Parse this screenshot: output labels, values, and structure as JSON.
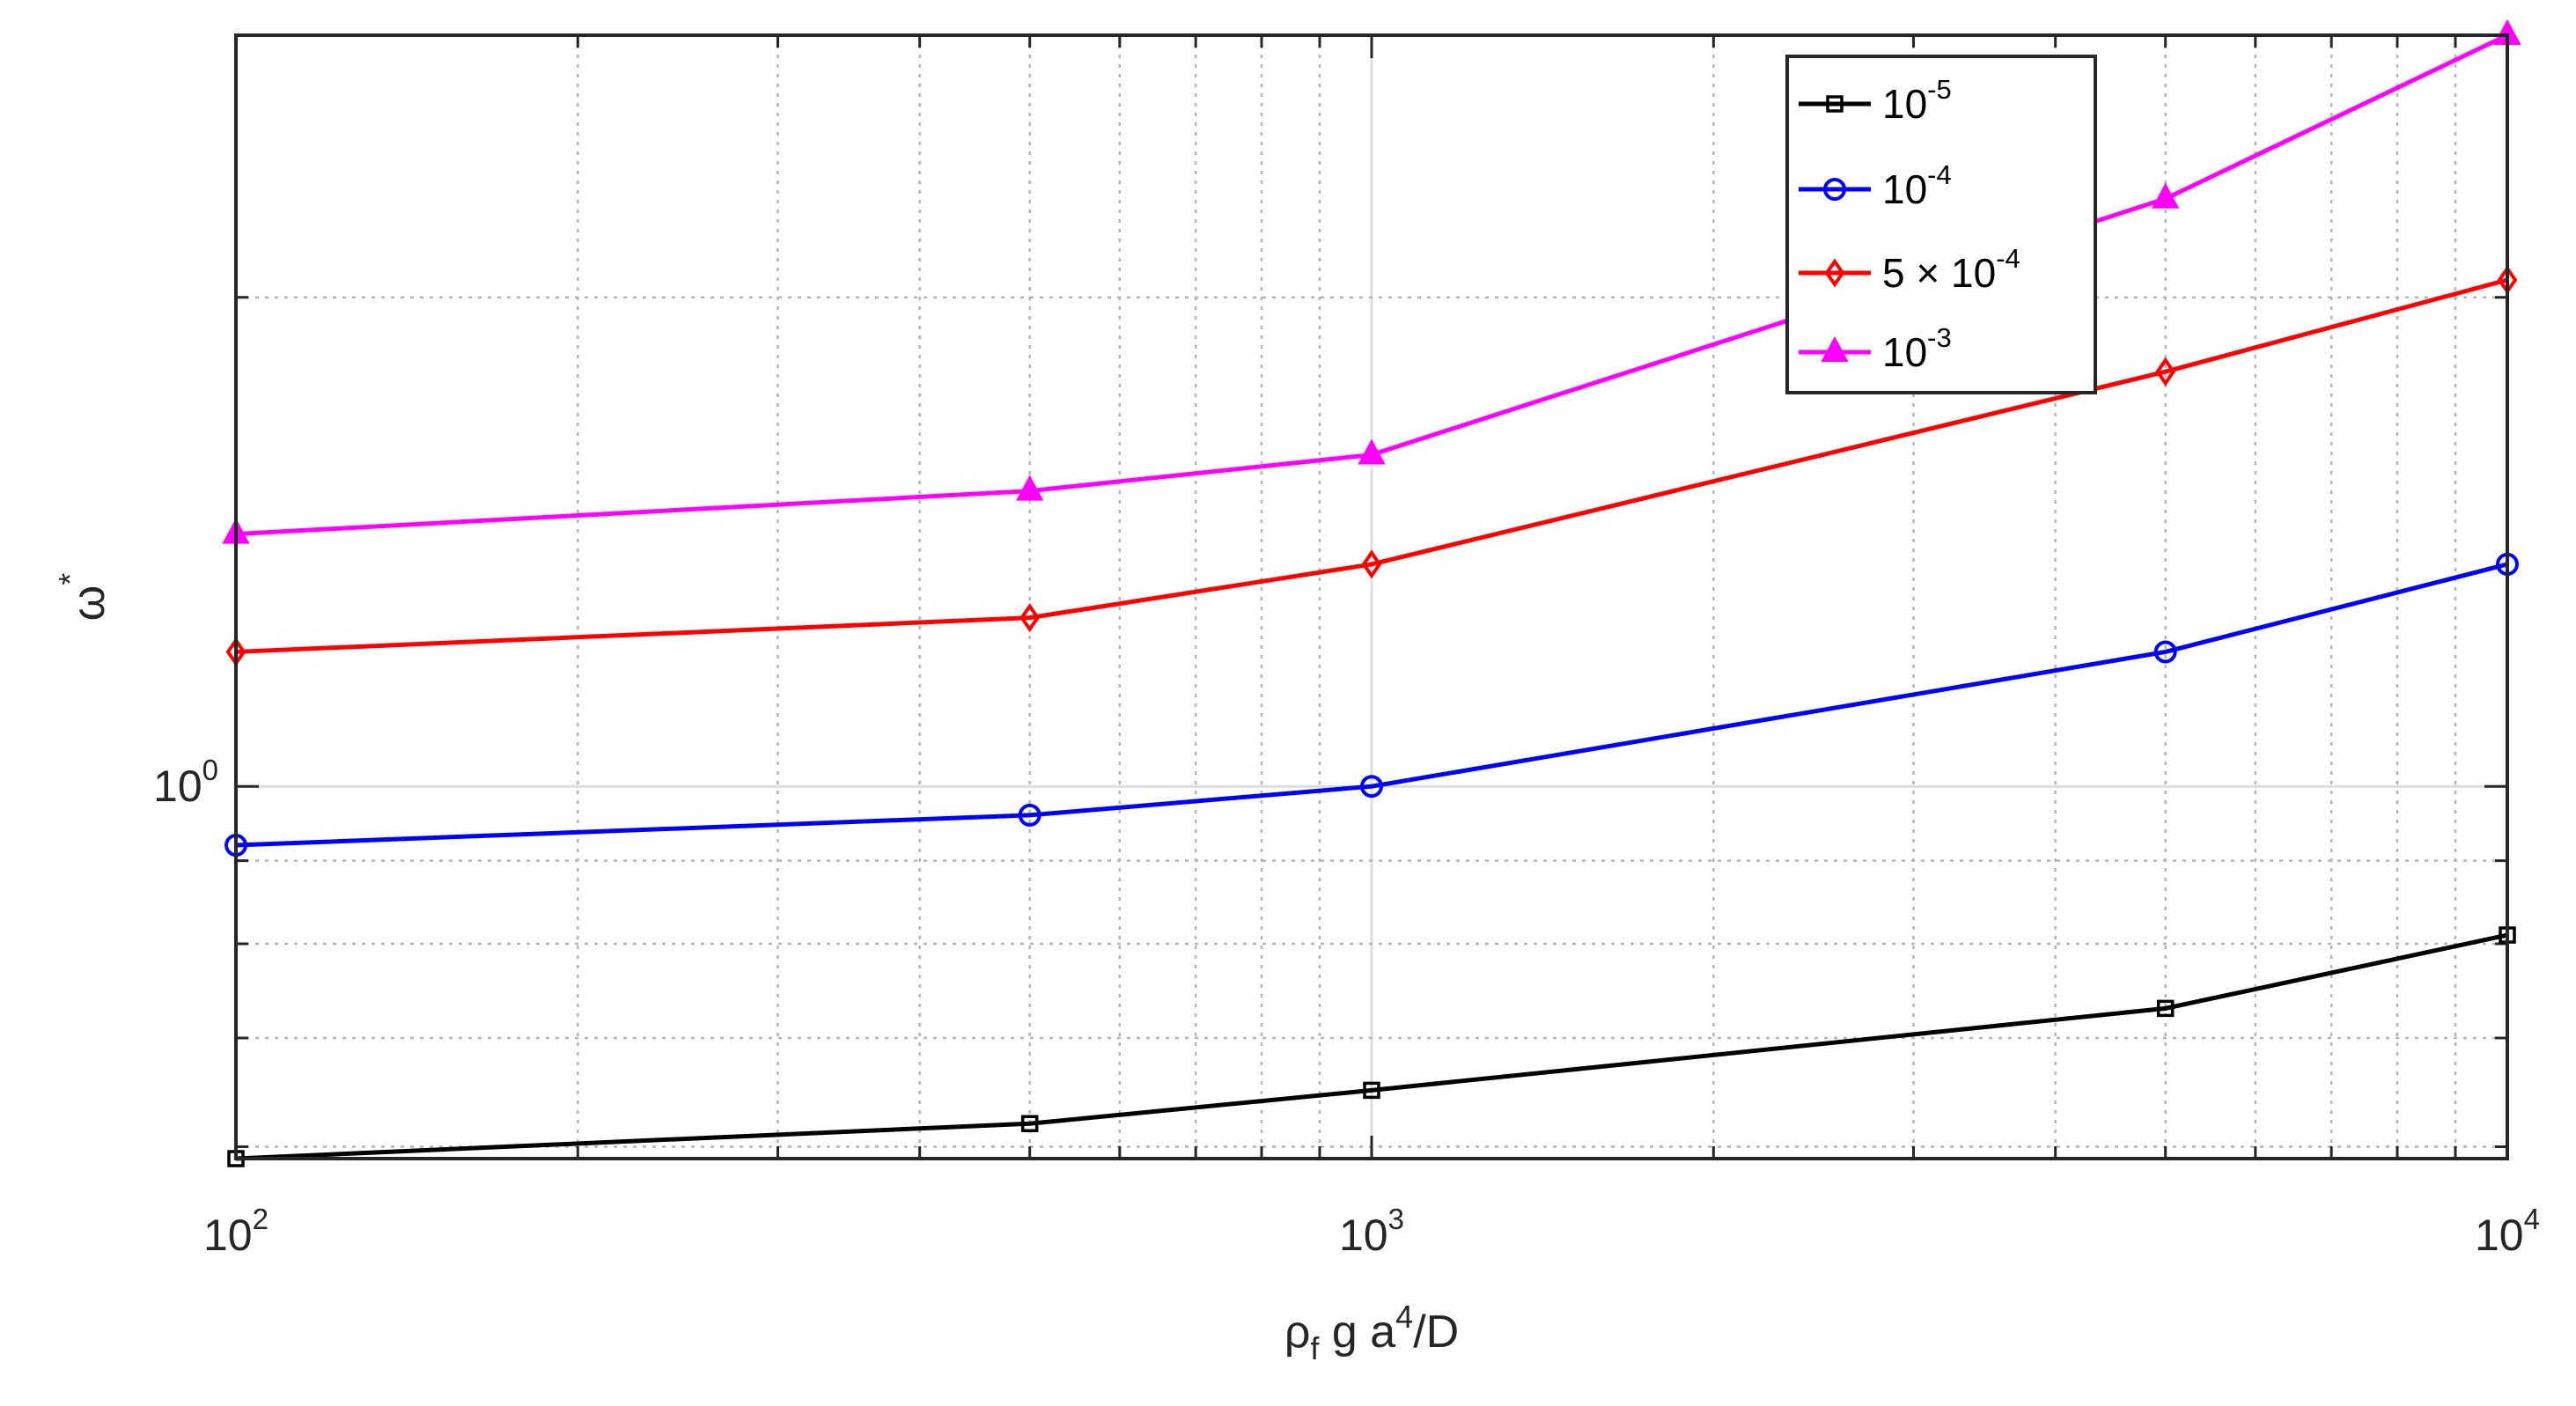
{
  "chart_data": {
    "type": "line",
    "xscale": "log",
    "yscale": "log",
    "xlim": [
      100,
      10000
    ],
    "ylim": [
      0.59,
      2.9
    ],
    "x": [
      100,
      500,
      1000,
      5000,
      10000
    ],
    "x_ticks": [
      {
        "value": 100,
        "base": "10",
        "exp": "2"
      },
      {
        "value": 1000,
        "base": "10",
        "exp": "3"
      },
      {
        "value": 10000,
        "base": "10",
        "exp": "4"
      }
    ],
    "y_ticks": [
      {
        "value": 1,
        "base": "10",
        "exp": "0"
      }
    ],
    "xlabel": {
      "rho": "ρ",
      "sub": "f",
      "mid": " g a",
      "exp": "4",
      "tail": "/D"
    },
    "ylabel": {
      "symbol": "ω",
      "sup": "*"
    },
    "grid": true,
    "legend_position": "top-right",
    "series": [
      {
        "name": "10^-5",
        "legend": {
          "pre": "",
          "base": "10",
          "exp": "-5"
        },
        "color": "#000000",
        "marker": "square",
        "values": [
          0.59,
          0.62,
          0.65,
          0.73,
          0.81
        ]
      },
      {
        "name": "10^-4",
        "legend": {
          "pre": "",
          "base": "10",
          "exp": "-4"
        },
        "color": "#0000ff",
        "marker": "circle",
        "values": [
          0.92,
          0.96,
          1.0,
          1.21,
          1.37
        ]
      },
      {
        "name": "5 × 10^-4",
        "legend": {
          "pre": "5 × ",
          "base": "10",
          "exp": "-4"
        },
        "color": "#ff0000",
        "marker": "diamond",
        "values": [
          1.21,
          1.27,
          1.37,
          1.8,
          2.05
        ]
      },
      {
        "name": "10^-3",
        "legend": {
          "pre": "",
          "base": "10",
          "exp": "-3"
        },
        "color": "#ff00ff",
        "marker": "triangle",
        "values": [
          1.43,
          1.52,
          1.6,
          2.3,
          2.9
        ]
      }
    ]
  }
}
